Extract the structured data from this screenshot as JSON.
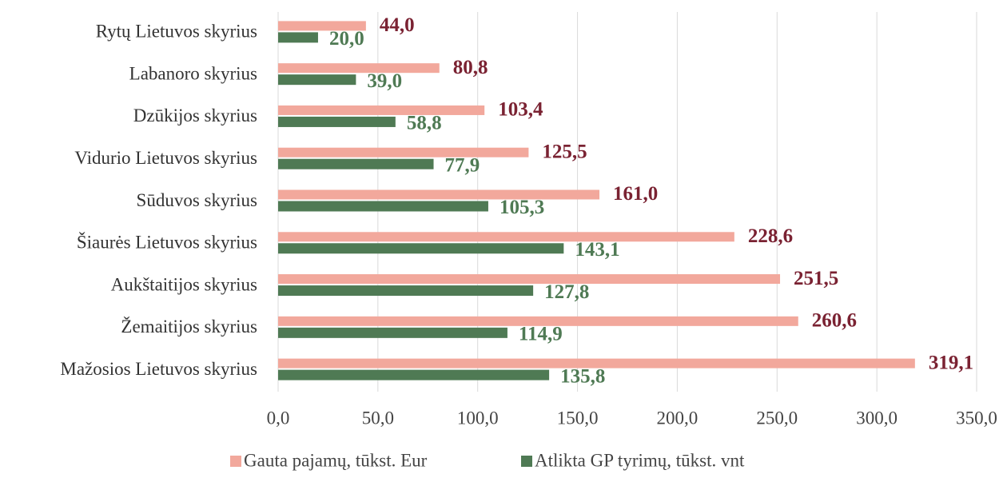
{
  "chart_data": {
    "type": "bar",
    "orientation": "horizontal",
    "categories": [
      "Rytų Lietuvos skyrius",
      "Labanoro skyrius",
      "Dzūkijos skyrius",
      "Vidurio Lietuvos skyrius",
      "Sūduvos skyrius",
      "Šiaurės Lietuvos skyrius",
      "Aukštaitijos skyrius",
      "Žemaitijos skyrius",
      "Mažosios Lietuvos skyrius"
    ],
    "series": [
      {
        "name": "Gauta pajamų, tūkst. Eur",
        "color": "#f2a89c",
        "label_color": "#7a2232",
        "values": [
          44.0,
          80.8,
          103.4,
          125.5,
          161.0,
          228.6,
          251.5,
          260.6,
          319.1
        ],
        "value_labels": [
          "44,0",
          "80,8",
          "103,4",
          "125,5",
          "161,0",
          "228,6",
          "251,5",
          "260,6",
          "319,1"
        ]
      },
      {
        "name": "Atlikta GP tyrimų, tūkst. vnt",
        "color": "#4f7a54",
        "label_color": "#4f7a54",
        "values": [
          20.0,
          39.0,
          58.8,
          77.9,
          105.3,
          143.1,
          127.8,
          114.9,
          135.8
        ],
        "value_labels": [
          "20,0",
          "39,0",
          "58,8",
          "77,9",
          "105,3",
          "143,1",
          "127,8",
          "114,9",
          "135,8"
        ]
      }
    ],
    "xlim": [
      0,
      350
    ],
    "xticks": [
      {
        "value": 0,
        "label": "0,0"
      },
      {
        "value": 50,
        "label": "50,0"
      },
      {
        "value": 100,
        "label": "100,0"
      },
      {
        "value": 150,
        "label": "150,0"
      },
      {
        "value": 200,
        "label": "200,0"
      },
      {
        "value": 250,
        "label": "250,0"
      },
      {
        "value": 300,
        "label": "300,0"
      },
      {
        "value": 350,
        "label": "350,0"
      }
    ],
    "grid": true,
    "legend": "bottom"
  }
}
